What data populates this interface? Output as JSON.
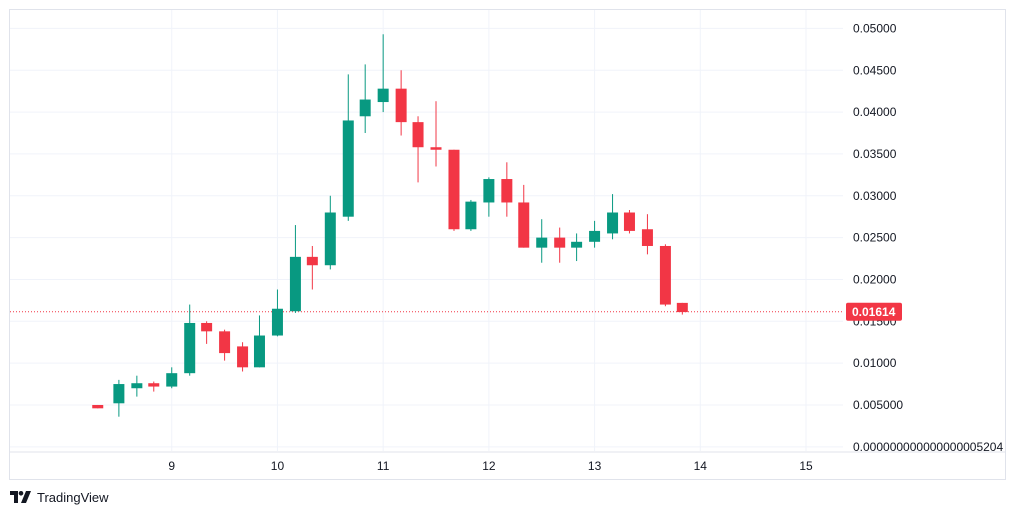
{
  "branding": {
    "name": "TradingView",
    "logo_icon": "tradingview-logo-icon"
  },
  "colors": {
    "up": "#089981",
    "down": "#f23645",
    "grid": "#f0f3fa",
    "border": "#e0e3eb",
    "text": "#131722"
  },
  "chart_data": {
    "type": "candlestick",
    "x_tick_labels": [
      "9",
      "10",
      "11",
      "12",
      "13",
      "14",
      "15"
    ],
    "y_tick_labels": [
      "0.05000",
      "0.04500",
      "0.04000",
      "0.03500",
      "0.03000",
      "0.02500",
      "0.02000",
      "0.01500",
      "0.01000",
      "0.005000",
      "0.000000000000000005204"
    ],
    "y_tick_values": [
      0.05,
      0.045,
      0.04,
      0.035,
      0.03,
      0.025,
      0.02,
      0.015,
      0.01,
      0.005,
      0.0
    ],
    "x_tick_values": [
      9,
      10,
      11,
      12,
      13,
      14,
      15
    ],
    "xlim": [
      7.47,
      15.35
    ],
    "ylim": [
      -0.0005,
      0.0522
    ],
    "grid": true,
    "last_price": 0.01614,
    "last_price_label": "0.01614",
    "candles": [
      {
        "t": 8.3,
        "o": 0.005,
        "h": 0.005,
        "l": 0.0046,
        "c": 0.0046
      },
      {
        "t": 8.5,
        "o": 0.0052,
        "h": 0.008,
        "l": 0.0036,
        "c": 0.0075
      },
      {
        "t": 8.67,
        "o": 0.007,
        "h": 0.0085,
        "l": 0.006,
        "c": 0.0076
      },
      {
        "t": 8.83,
        "o": 0.0076,
        "h": 0.0078,
        "l": 0.0066,
        "c": 0.0072
      },
      {
        "t": 9.0,
        "o": 0.0072,
        "h": 0.0095,
        "l": 0.007,
        "c": 0.0088
      },
      {
        "t": 9.17,
        "o": 0.0088,
        "h": 0.017,
        "l": 0.0085,
        "c": 0.0148
      },
      {
        "t": 9.33,
        "o": 0.0148,
        "h": 0.015,
        "l": 0.0123,
        "c": 0.0138
      },
      {
        "t": 9.5,
        "o": 0.0138,
        "h": 0.014,
        "l": 0.0103,
        "c": 0.0112
      },
      {
        "t": 9.67,
        "o": 0.012,
        "h": 0.0125,
        "l": 0.009,
        "c": 0.0095
      },
      {
        "t": 9.83,
        "o": 0.0095,
        "h": 0.0157,
        "l": 0.0095,
        "c": 0.0133
      },
      {
        "t": 10.0,
        "o": 0.0133,
        "h": 0.0188,
        "l": 0.0132,
        "c": 0.0165
      },
      {
        "t": 10.17,
        "o": 0.0162,
        "h": 0.0265,
        "l": 0.016,
        "c": 0.0227
      },
      {
        "t": 10.33,
        "o": 0.0227,
        "h": 0.024,
        "l": 0.0188,
        "c": 0.0217
      },
      {
        "t": 10.5,
        "o": 0.0217,
        "h": 0.03,
        "l": 0.0212,
        "c": 0.028
      },
      {
        "t": 10.67,
        "o": 0.0275,
        "h": 0.0445,
        "l": 0.027,
        "c": 0.039
      },
      {
        "t": 10.83,
        "o": 0.0395,
        "h": 0.0457,
        "l": 0.0375,
        "c": 0.0415
      },
      {
        "t": 11.0,
        "o": 0.0412,
        "h": 0.0493,
        "l": 0.04,
        "c": 0.0428
      },
      {
        "t": 11.17,
        "o": 0.0428,
        "h": 0.045,
        "l": 0.0372,
        "c": 0.0388
      },
      {
        "t": 11.33,
        "o": 0.0388,
        "h": 0.0395,
        "l": 0.0316,
        "c": 0.0358
      },
      {
        "t": 11.5,
        "o": 0.0358,
        "h": 0.0413,
        "l": 0.0335,
        "c": 0.0355
      },
      {
        "t": 11.67,
        "o": 0.0355,
        "h": 0.0355,
        "l": 0.0258,
        "c": 0.026
      },
      {
        "t": 11.83,
        "o": 0.026,
        "h": 0.0295,
        "l": 0.0258,
        "c": 0.0293
      },
      {
        "t": 12.0,
        "o": 0.0292,
        "h": 0.0322,
        "l": 0.0275,
        "c": 0.032
      },
      {
        "t": 12.17,
        "o": 0.032,
        "h": 0.034,
        "l": 0.0275,
        "c": 0.0292
      },
      {
        "t": 12.33,
        "o": 0.0292,
        "h": 0.0313,
        "l": 0.0238,
        "c": 0.0238
      },
      {
        "t": 12.5,
        "o": 0.0238,
        "h": 0.0272,
        "l": 0.022,
        "c": 0.025
      },
      {
        "t": 12.67,
        "o": 0.025,
        "h": 0.0262,
        "l": 0.022,
        "c": 0.0238
      },
      {
        "t": 12.83,
        "o": 0.0238,
        "h": 0.0255,
        "l": 0.0222,
        "c": 0.0245
      },
      {
        "t": 13.0,
        "o": 0.0245,
        "h": 0.027,
        "l": 0.0238,
        "c": 0.0258
      },
      {
        "t": 13.17,
        "o": 0.0255,
        "h": 0.0302,
        "l": 0.0248,
        "c": 0.028
      },
      {
        "t": 13.33,
        "o": 0.028,
        "h": 0.0283,
        "l": 0.0255,
        "c": 0.0258
      },
      {
        "t": 13.5,
        "o": 0.026,
        "h": 0.0278,
        "l": 0.023,
        "c": 0.024
      },
      {
        "t": 13.67,
        "o": 0.024,
        "h": 0.0242,
        "l": 0.0168,
        "c": 0.017
      },
      {
        "t": 13.83,
        "o": 0.0172,
        "h": 0.0172,
        "l": 0.0158,
        "c": 0.0161
      }
    ]
  }
}
